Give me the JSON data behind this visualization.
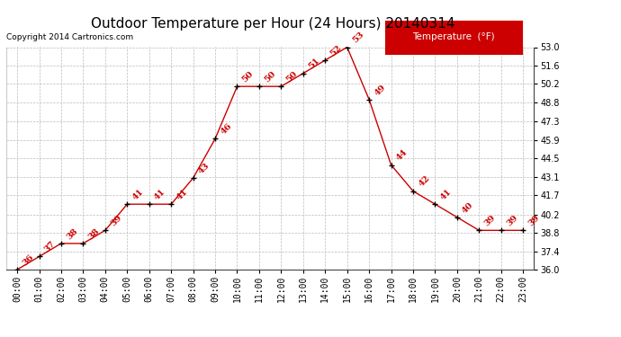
{
  "title": "Outdoor Temperature per Hour (24 Hours) 20140314",
  "copyright": "Copyright 2014 Cartronics.com",
  "legend_label": "Temperature  (°F)",
  "hours": [
    "00:00",
    "01:00",
    "02:00",
    "03:00",
    "04:00",
    "05:00",
    "06:00",
    "07:00",
    "08:00",
    "09:00",
    "10:00",
    "11:00",
    "12:00",
    "13:00",
    "14:00",
    "15:00",
    "16:00",
    "17:00",
    "18:00",
    "19:00",
    "20:00",
    "21:00",
    "22:00",
    "23:00"
  ],
  "temperatures": [
    36,
    37,
    38,
    38,
    39,
    41,
    41,
    41,
    43,
    46,
    50,
    50,
    50,
    51,
    52,
    53,
    49,
    44,
    42,
    41,
    40,
    39,
    39,
    39
  ],
  "line_color": "#cc0000",
  "marker_color": "#000000",
  "label_color": "#cc0000",
  "background_color": "#ffffff",
  "grid_color": "#bbbbbb",
  "ylim_min": 36.0,
  "ylim_max": 53.0,
  "yticks": [
    36.0,
    37.4,
    38.8,
    40.2,
    41.7,
    43.1,
    44.5,
    45.9,
    47.3,
    48.8,
    50.2,
    51.6,
    53.0
  ],
  "title_fontsize": 11,
  "label_fontsize": 7,
  "tick_fontsize": 7,
  "copyright_fontsize": 6.5
}
